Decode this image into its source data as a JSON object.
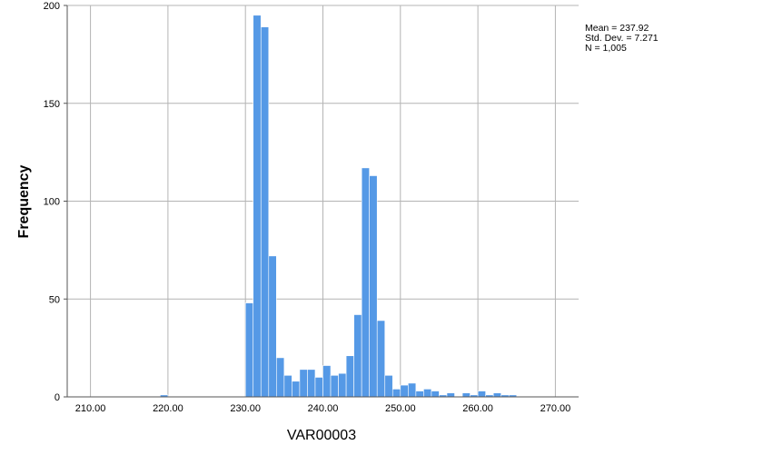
{
  "chart_data": {
    "type": "bar",
    "xlabel": "VAR00003",
    "ylabel": "Frequency",
    "xlim": [
      207,
      273
    ],
    "ylim": [
      0,
      200
    ],
    "x_ticks": [
      "210.00",
      "220.00",
      "230.00",
      "240.00",
      "250.00",
      "260.00",
      "270.00"
    ],
    "x_tick_values": [
      210,
      220,
      230,
      240,
      250,
      260,
      270
    ],
    "y_ticks": [
      "0",
      "50",
      "100",
      "150",
      "200"
    ],
    "y_tick_values": [
      0,
      50,
      100,
      150,
      200
    ],
    "grid": true,
    "bar_color": "#5599e6",
    "bin_width": 1,
    "bins": [
      {
        "x": 219,
        "value": 1
      },
      {
        "x": 230,
        "value": 48
      },
      {
        "x": 231,
        "value": 195
      },
      {
        "x": 232,
        "value": 189
      },
      {
        "x": 233,
        "value": 72
      },
      {
        "x": 234,
        "value": 20
      },
      {
        "x": 235,
        "value": 11
      },
      {
        "x": 236,
        "value": 8
      },
      {
        "x": 237,
        "value": 14
      },
      {
        "x": 238,
        "value": 14
      },
      {
        "x": 239,
        "value": 10
      },
      {
        "x": 240,
        "value": 16
      },
      {
        "x": 241,
        "value": 11
      },
      {
        "x": 242,
        "value": 12
      },
      {
        "x": 243,
        "value": 21
      },
      {
        "x": 244,
        "value": 42
      },
      {
        "x": 245,
        "value": 117
      },
      {
        "x": 246,
        "value": 113
      },
      {
        "x": 247,
        "value": 39
      },
      {
        "x": 248,
        "value": 11
      },
      {
        "x": 249,
        "value": 4
      },
      {
        "x": 250,
        "value": 6
      },
      {
        "x": 251,
        "value": 7
      },
      {
        "x": 252,
        "value": 3
      },
      {
        "x": 253,
        "value": 4
      },
      {
        "x": 254,
        "value": 3
      },
      {
        "x": 255,
        "value": 1
      },
      {
        "x": 256,
        "value": 2
      },
      {
        "x": 258,
        "value": 2
      },
      {
        "x": 259,
        "value": 1
      },
      {
        "x": 260,
        "value": 3
      },
      {
        "x": 261,
        "value": 1
      },
      {
        "x": 262,
        "value": 2
      },
      {
        "x": 263,
        "value": 1
      },
      {
        "x": 264,
        "value": 1
      }
    ],
    "stats": {
      "mean": "Mean = 237.92",
      "std": "Std. Dev. = 7.271",
      "n": "N = 1,005"
    }
  }
}
